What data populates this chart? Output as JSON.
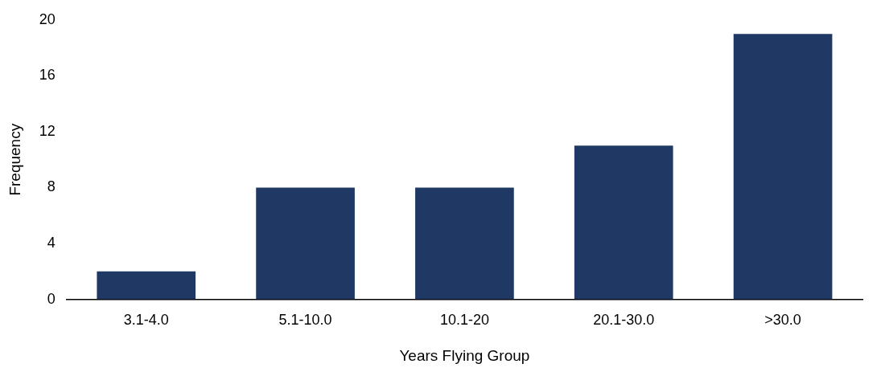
{
  "chart_data": {
    "type": "bar",
    "xlabel": "Years Flying Group",
    "ylabel": "Frequency",
    "categories": [
      "3.1-4.0",
      "5.1-10.0",
      "10.1-20",
      "20.1-30.0",
      ">30.0"
    ],
    "values": [
      2,
      8,
      8,
      11,
      19
    ],
    "color": "#203864",
    "ylim": [
      0,
      20
    ],
    "yticks": [
      0,
      4,
      8,
      12,
      16,
      20
    ],
    "grid": false,
    "legend": false
  }
}
